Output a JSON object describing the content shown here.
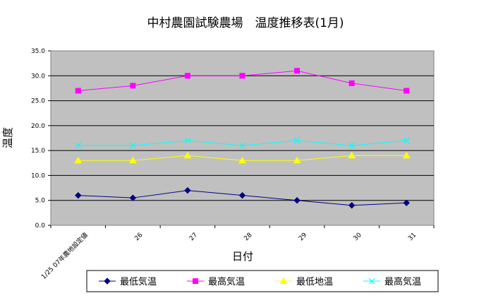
{
  "chart_data": {
    "type": "line",
    "title": "中村農園試験農場　温度推移表(1月)",
    "xlabel": "日付",
    "ylabel": "温度",
    "categories": [
      "1/25 07年農地設定値",
      "26",
      "27",
      "28",
      "29",
      "30",
      "31"
    ],
    "ylim": [
      0,
      35
    ],
    "ytick_step": 5,
    "ytick_labels": [
      "0.0",
      "5.0",
      "10.0",
      "15.0",
      "20.0",
      "25.0",
      "30.0",
      "35.0"
    ],
    "grid": true,
    "legend_position": "bottom",
    "plot_background": "#c0c0c0",
    "series": [
      {
        "name": "最低気温",
        "color": "#000080",
        "marker": "diamond",
        "values": [
          6.0,
          5.5,
          7.0,
          6.0,
          5.0,
          4.0,
          4.5
        ]
      },
      {
        "name": "最高気温",
        "color": "#ff00ff",
        "marker": "square",
        "values": [
          27.0,
          28.0,
          30.0,
          30.0,
          31.0,
          28.5,
          27.0
        ]
      },
      {
        "name": "最低地温",
        "color": "#ffff00",
        "marker": "triangle",
        "values": [
          13.0,
          13.0,
          14.0,
          13.0,
          13.0,
          14.0,
          14.0
        ]
      },
      {
        "name": "最高気温",
        "color": "#00ffff",
        "marker": "x",
        "values": [
          16.0,
          16.0,
          17.0,
          16.0,
          17.0,
          16.0,
          17.0
        ]
      }
    ]
  }
}
